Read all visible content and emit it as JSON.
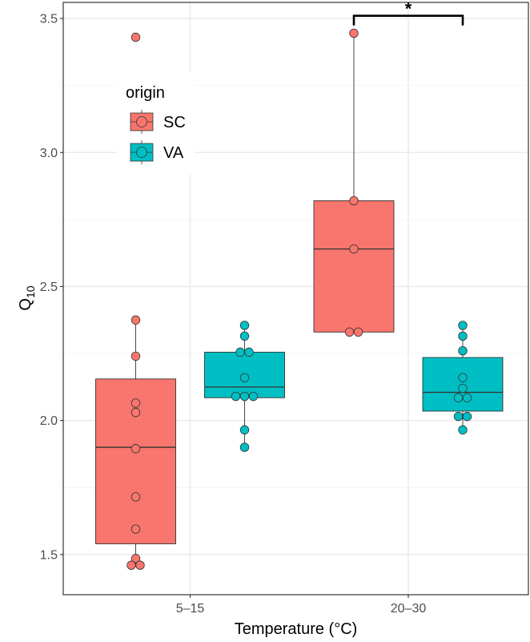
{
  "chart_data": {
    "type": "box",
    "title": "",
    "xlabel": "Temperature (°C)",
    "ylabel": {
      "base": "Q",
      "sub": "10"
    },
    "categories": [
      "5–15",
      "20–30"
    ],
    "ylim": [
      1.35,
      3.56
    ],
    "yticks": [
      1.5,
      2.0,
      2.5,
      3.0,
      3.5
    ],
    "ytick_labels": [
      "1.5",
      "2.0",
      "2.5",
      "3.0",
      "3.5"
    ],
    "grid": true,
    "legend": {
      "title": "origin",
      "position": "top-left"
    },
    "series": [
      {
        "name": "SC",
        "color": "#F8766D",
        "boxes": [
          {
            "category": "5–15",
            "whisker_low": 1.46,
            "q1": 1.54,
            "median": 1.9,
            "q3": 2.155,
            "whisker_high": 2.375,
            "points": [
              3.43,
              2.375,
              2.24,
              2.065,
              2.03,
              1.895,
              1.715,
              1.595,
              1.485,
              1.46,
              1.46
            ]
          },
          {
            "category": "20–30",
            "whisker_low": 2.33,
            "q1": 2.33,
            "median": 2.64,
            "q3": 2.82,
            "whisker_high": 3.445,
            "points": [
              3.445,
              2.82,
              2.64,
              2.33,
              2.33
            ]
          }
        ]
      },
      {
        "name": "VA",
        "color": "#00BFC4",
        "boxes": [
          {
            "category": "5–15",
            "whisker_low": 1.9,
            "q1": 2.085,
            "median": 2.125,
            "q3": 2.255,
            "whisker_high": 2.355,
            "points": [
              2.355,
              2.315,
              2.255,
              2.255,
              2.16,
              2.09,
              2.09,
              2.09,
              1.965,
              1.9
            ]
          },
          {
            "category": "20–30",
            "whisker_low": 1.965,
            "q1": 2.035,
            "median": 2.105,
            "q3": 2.235,
            "whisker_high": 2.355,
            "points": [
              2.355,
              2.315,
              2.26,
              2.16,
              2.12,
              2.085,
              2.085,
              2.015,
              2.015,
              1.965
            ]
          }
        ]
      }
    ],
    "annotations": [
      {
        "type": "significance",
        "label": "*",
        "category": "20–30",
        "between": [
          "SC",
          "VA"
        ],
        "y": 3.51
      }
    ]
  }
}
